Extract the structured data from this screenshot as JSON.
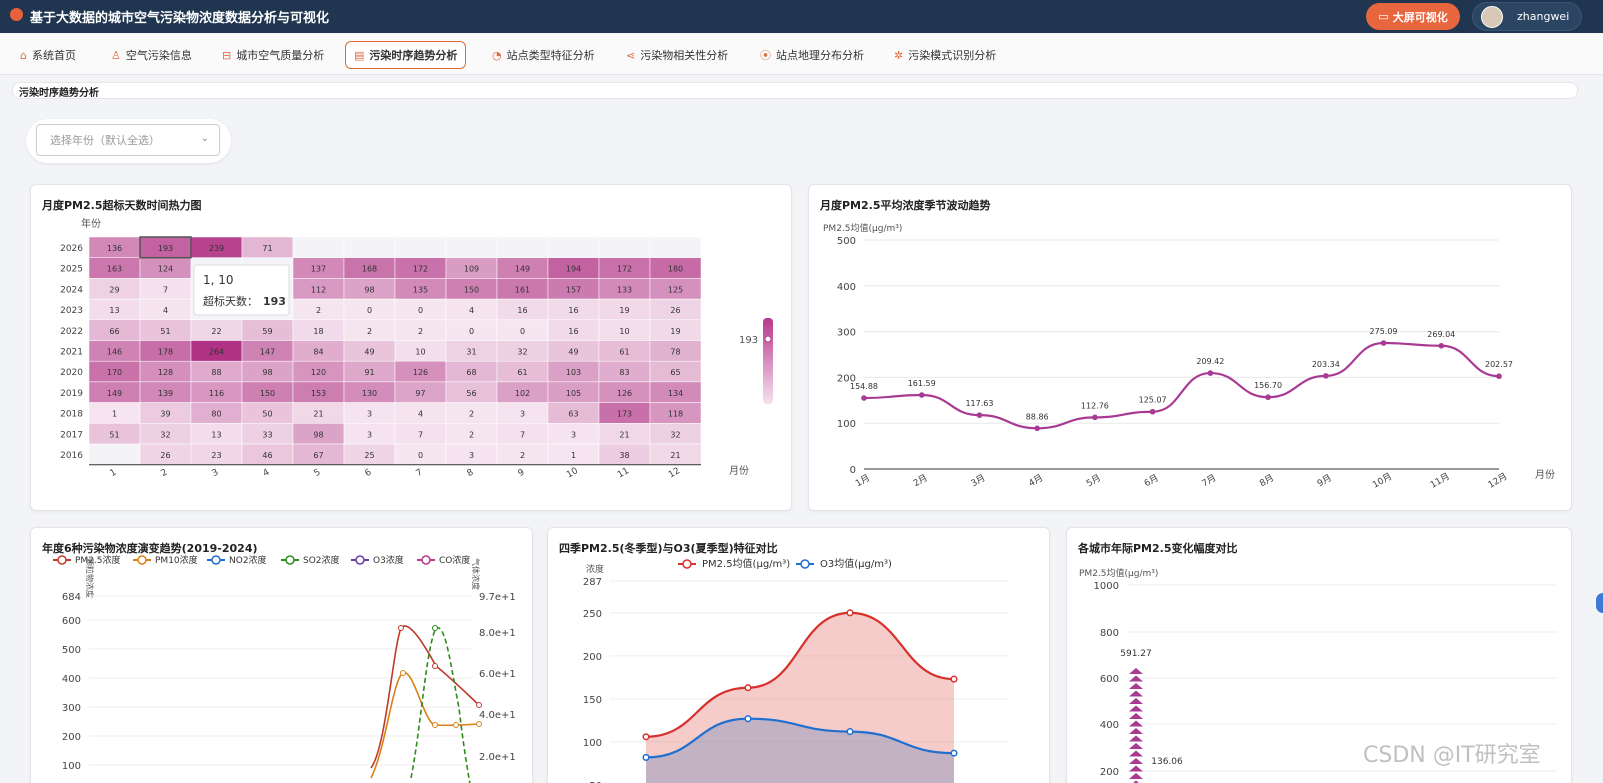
{
  "app": {
    "title": "基于大数据的城市空气污染物浓度数据分析与可视化",
    "big_screen_label": "大屏可视化",
    "username": "zhangwei"
  },
  "nav": [
    {
      "label": "系统首页",
      "icon": "home-icon"
    },
    {
      "label": "空气污染信息",
      "icon": "user-icon"
    },
    {
      "label": "城市空气质量分析",
      "icon": "cart-icon"
    },
    {
      "label": "污染时序趋势分析",
      "icon": "chat-icon",
      "active": true
    },
    {
      "label": "站点类型特征分析",
      "icon": "pie-icon"
    },
    {
      "label": "污染物相关性分析",
      "icon": "share-icon"
    },
    {
      "label": "站点地理分布分析",
      "icon": "location-icon"
    },
    {
      "label": "污染模式识别分析",
      "icon": "gear-icon"
    }
  ],
  "page": {
    "section_title": "污染时序趋势分析",
    "year_placeholder": "选择年份（默认全选）"
  },
  "heatmap": {
    "title": "月度PM2.5超标天数时间热力图",
    "ylabel": "年份",
    "xlabel": "月份",
    "years": [
      "2026",
      "2025",
      "2024",
      "2023",
      "2022",
      "2021",
      "2020",
      "2019",
      "2018",
      "2017",
      "2016"
    ],
    "months": [
      "1",
      "2",
      "3",
      "4",
      "5",
      "6",
      "7",
      "8",
      "9",
      "10",
      "11",
      "12"
    ],
    "values": [
      [
        136,
        193,
        239,
        71,
        null,
        null,
        null,
        null,
        null,
        null,
        null,
        null
      ],
      [
        163,
        124,
        null,
        null,
        137,
        168,
        172,
        109,
        149,
        194,
        172,
        180
      ],
      [
        29,
        7,
        null,
        null,
        112,
        98,
        135,
        150,
        161,
        157,
        133,
        125
      ],
      [
        13,
        4,
        null,
        null,
        2,
        0,
        0,
        4,
        16,
        16,
        19,
        26
      ],
      [
        66,
        51,
        22,
        59,
        18,
        2,
        2,
        0,
        0,
        16,
        10,
        19
      ],
      [
        146,
        178,
        264,
        147,
        84,
        49,
        10,
        31,
        32,
        49,
        61,
        78
      ],
      [
        170,
        128,
        88,
        98,
        120,
        91,
        126,
        68,
        61,
        103,
        83,
        65
      ],
      [
        149,
        139,
        116,
        150,
        153,
        130,
        97,
        56,
        102,
        105,
        126,
        134
      ],
      [
        1,
        39,
        80,
        50,
        21,
        3,
        4,
        2,
        3,
        63,
        173,
        118
      ],
      [
        51,
        32,
        13,
        33,
        98,
        3,
        7,
        2,
        7,
        3,
        21,
        32
      ],
      [
        null,
        26,
        23,
        46,
        67,
        25,
        0,
        3,
        2,
        1,
        38,
        21
      ]
    ],
    "tooltip": {
      "title": "1, 10",
      "label": "超标天数：",
      "value": "193"
    },
    "visual_map_value": "193"
  },
  "seasonal": {
    "title": "月度PM2.5平均浓度季节波动趋势",
    "ylabel": "PM2.5均值(μg/m³)",
    "xlabel": "月份",
    "categories": [
      "1月",
      "2月",
      "3月",
      "4月",
      "5月",
      "6月",
      "7月",
      "8月",
      "9月",
      "10月",
      "11月",
      "12月"
    ],
    "values": [
      154.88,
      161.59,
      117.63,
      88.86,
      112.76,
      125.07,
      209.42,
      156.7,
      203.34,
      275.09,
      269.04,
      202.57
    ],
    "ylim": [
      0,
      500
    ],
    "yticks": [
      "0",
      "100",
      "200",
      "300",
      "400",
      "500"
    ]
  },
  "annual": {
    "title": "年度6种污染物浓度演变趋势(2019-2024)",
    "legend": [
      "PM2.5浓度",
      "PM10浓度",
      "NO2浓度",
      "SO2浓度",
      "O3浓度",
      "CO浓度"
    ],
    "left_axis_label": "颗粒物浓度",
    "right_axis_label": "气体浓度",
    "left_ticks": [
      "684",
      "600",
      "500",
      "400",
      "300",
      "200",
      "100"
    ],
    "right_ticks": [
      "9.7e+1",
      "8.0e+1",
      "6.0e+1",
      "4.0e+1",
      "2.0e+1"
    ]
  },
  "season": {
    "title": "四季PM2.5(冬季型)与O3(夏季型)特征对比",
    "ylabel": "浓度",
    "legend": [
      "PM2.5均值(μg/m³)",
      "O3均值(μg/m³)"
    ],
    "yticks": [
      "287",
      "250",
      "200",
      "150",
      "100",
      "50"
    ],
    "series": [
      {
        "name": "PM2.5均值(μg/m³)",
        "values": [
          106,
          163,
          250,
          173
        ]
      },
      {
        "name": "O3均值(μg/m³)",
        "values": [
          82,
          127,
          112,
          87
        ]
      }
    ]
  },
  "city": {
    "title": "各城市年际PM2.5变化幅度对比",
    "ylabel": "PM2.5均值(μg/m³)",
    "yticks": [
      "1000",
      "800",
      "600",
      "400",
      "200"
    ],
    "labels": [
      "591.27",
      "136.06"
    ]
  },
  "watermark": "CSDN @IT研究室",
  "colors": {
    "accent": "#e8663e",
    "series_purple": "#a83a94",
    "red": "#d6312b",
    "blue": "#1f6fd1"
  }
}
